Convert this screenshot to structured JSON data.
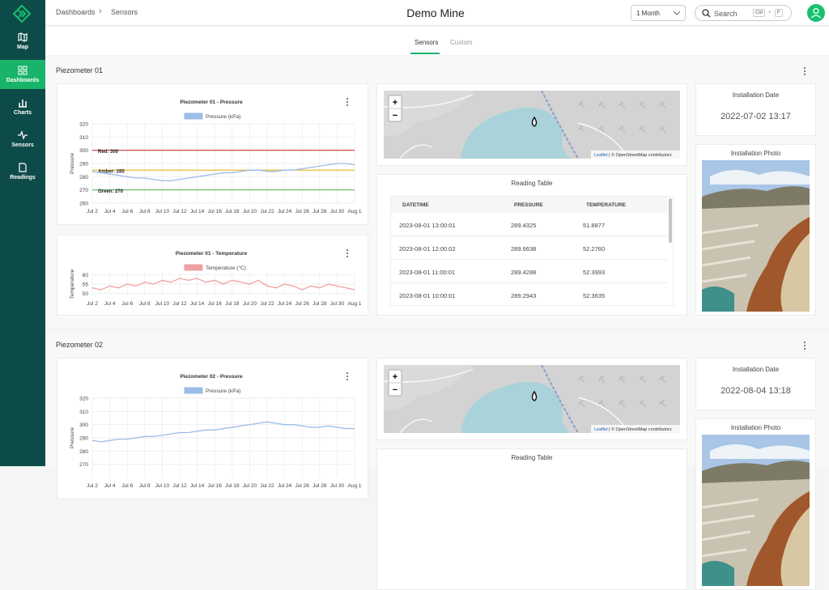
{
  "sidebar": {
    "items": [
      "Map",
      "Dashboards",
      "Charts",
      "Sensors",
      "Readings"
    ]
  },
  "header": {
    "breadcrumb": [
      "Dashboards",
      "Sensors"
    ],
    "title": "Demo Mine",
    "range": "1 Month",
    "search": "Search",
    "shortcut": [
      "Ctrl",
      "F"
    ]
  },
  "tabs": [
    "Sensors",
    "Custom"
  ],
  "chart_data": [
    {
      "type": "line",
      "title": "Piezometer 01 - Pressure",
      "y_label": "Pressure",
      "categories": [
        "Jul 2",
        null,
        "Jul 4",
        null,
        "Jul 6",
        null,
        "Jul 8",
        null,
        "Jul 10",
        null,
        "Jul 12",
        null,
        "Jul 14",
        null,
        "Jul 16",
        null,
        "Jul 18",
        null,
        "Jul 20",
        null,
        "Jul 22",
        null,
        "Jul 24",
        null,
        "Jul 26",
        null,
        "Jul 28",
        null,
        "Jul 30",
        null,
        "Aug 1"
      ],
      "series": [
        {
          "name": "Pressure (kPa)",
          "color": "#9bbde8",
          "values": [
            284,
            283,
            282,
            281,
            280,
            279,
            279,
            278,
            277,
            277,
            278,
            279,
            280,
            281,
            282,
            283,
            283,
            284,
            285,
            285,
            284,
            284,
            285,
            285,
            286,
            287,
            288,
            289,
            290,
            290,
            289
          ]
        }
      ],
      "thresholds": [
        {
          "label": "Red: 300",
          "value": 300,
          "color": "#c0392b"
        },
        {
          "label": "Amber: 285",
          "value": 285,
          "color": "#e6b422"
        },
        {
          "label": "Green: 270",
          "value": 270,
          "color": "#5cb85c"
        }
      ],
      "ylim": [
        260,
        320
      ],
      "yticks": [
        260,
        270,
        280,
        290,
        300,
        310,
        320
      ],
      "grid": true
    },
    {
      "type": "line",
      "title": "Piezometer 01 - Temperature",
      "y_label": "Temperature",
      "categories": [
        "Jul 2",
        null,
        "Jul 4",
        null,
        "Jul 6",
        null,
        "Jul 8",
        null,
        "Jul 10",
        null,
        "Jul 12",
        null,
        "Jul 14",
        null,
        "Jul 16",
        null,
        "Jul 18",
        null,
        "Jul 20",
        null,
        "Jul 22",
        null,
        "Jul 24",
        null,
        "Jul 26",
        null,
        "Jul 28",
        null,
        "Jul 30",
        null,
        "Aug 1"
      ],
      "series": [
        {
          "name": "Temperature (°C)",
          "color": "#f0a0a0",
          "values": [
            53,
            52,
            54,
            53,
            55,
            54,
            56,
            55,
            57,
            56,
            58,
            57,
            58,
            56,
            57,
            55,
            57,
            56,
            55,
            57,
            54,
            53,
            55,
            54,
            52,
            54,
            53,
            55,
            54,
            53,
            52
          ]
        }
      ],
      "ylim": [
        49,
        61
      ],
      "yticks": [
        50,
        55,
        60
      ],
      "grid": true
    },
    {
      "type": "line",
      "title": "Piezometer 02 - Pressure",
      "y_label": "Pressure",
      "categories": [
        "Jul 2",
        null,
        "Jul 4",
        null,
        "Jul 6",
        null,
        "Jul 8",
        null,
        "Jul 10",
        null,
        "Jul 12",
        null,
        "Jul 14",
        null,
        "Jul 16",
        null,
        "Jul 18",
        null,
        "Jul 20",
        null,
        "Jul 22",
        null,
        "Jul 24",
        null,
        "Jul 26",
        null,
        "Jul 28",
        null,
        "Jul 30",
        null,
        "Aug 1"
      ],
      "series": [
        {
          "name": "Pressure (kPa)",
          "color": "#9bbde8",
          "values": [
            288,
            287,
            288,
            289,
            289,
            290,
            291,
            291,
            292,
            293,
            294,
            294,
            295,
            296,
            296,
            297,
            298,
            299,
            300,
            301,
            302,
            301,
            300,
            300,
            299,
            298,
            298,
            299,
            298,
            297,
            297
          ]
        }
      ],
      "ylim": [
        260,
        320
      ],
      "yticks": [
        270,
        280,
        290,
        300,
        310,
        320
      ],
      "grid": true
    }
  ],
  "sections": [
    {
      "title": "Piezometer 01",
      "map": {
        "zoom_in": "+",
        "zoom_out": "−",
        "attribution_link": "Leaflet",
        "attribution": "| © OpenStreetMap contributors"
      },
      "table": {
        "title": "Reading Table",
        "columns": [
          "DATETIME",
          "PRESSURE",
          "TEMPERATURE"
        ],
        "rows": [
          [
            "2023-08-01 13:00:01",
            "289.4325",
            "51.8877"
          ],
          [
            "2023-08-01 12:00:02",
            "289.6638",
            "52.2760"
          ],
          [
            "2023-08-01 11:00:01",
            "289.4288",
            "52.3993"
          ],
          [
            "2023-08-01 10:00:01",
            "289.2943",
            "52.3635"
          ]
        ]
      },
      "installation_date": {
        "label": "Installation Date",
        "value": "2022-07-02 13:17"
      },
      "installation_photo": {
        "label": "Installation Photo"
      }
    },
    {
      "title": "Piezometer 02",
      "map": {
        "zoom_in": "+",
        "zoom_out": "−",
        "attribution_link": "Leaflet",
        "attribution": "| © OpenStreetMap contributors"
      },
      "table": {
        "title": "Reading Table"
      },
      "installation_date": {
        "label": "Installation Date",
        "value": "2022-08-04 13:18"
      },
      "installation_photo": {
        "label": "Installation Photo"
      }
    }
  ]
}
